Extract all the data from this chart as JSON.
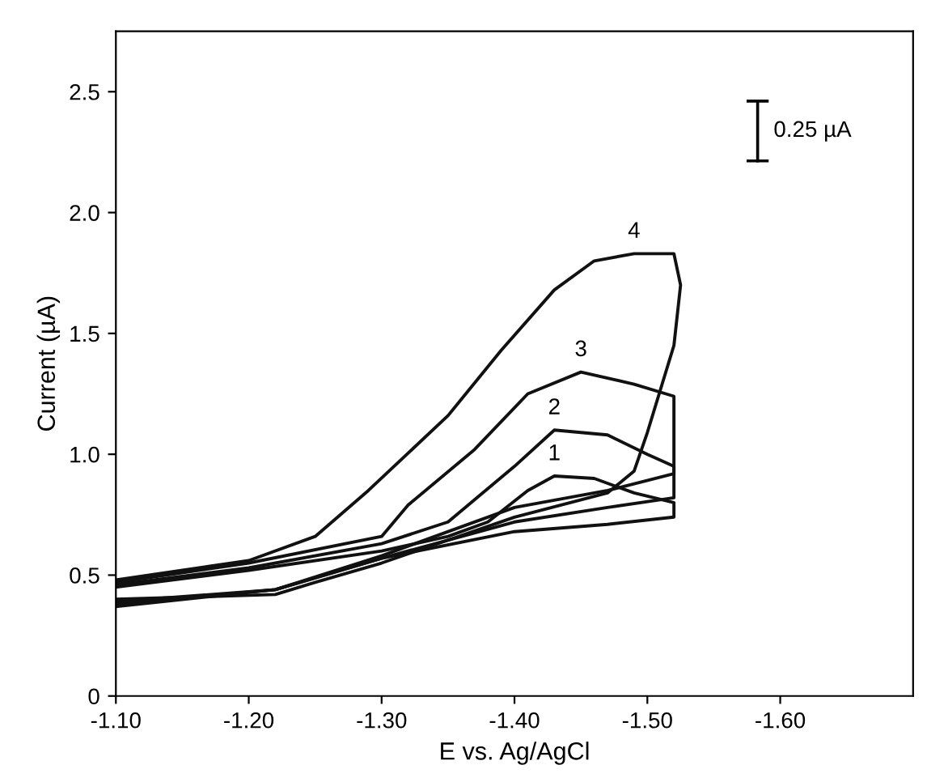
{
  "chart_data": {
    "type": "line",
    "xlabel": "E vs. Ag/AgCl",
    "ylabel": "Current (µA)",
    "xlim": [
      -1.1,
      -1.7
    ],
    "ylim": [
      0,
      2.75
    ],
    "xticks": [
      {
        "value": -1.1,
        "label": "-1.10"
      },
      {
        "value": -1.2,
        "label": "-1.20"
      },
      {
        "value": -1.3,
        "label": "-1.30"
      },
      {
        "value": -1.4,
        "label": "-1.40"
      },
      {
        "value": -1.5,
        "label": "-1.50"
      },
      {
        "value": -1.6,
        "label": "-1.60"
      }
    ],
    "yticks": [
      0,
      {
        "value": 0.5,
        "label": "0.5"
      },
      {
        "value": 1.0,
        "label": "1.0"
      },
      {
        "value": 1.5,
        "label": "1.5"
      },
      {
        "value": 2.0,
        "label": "2.0"
      },
      {
        "value": 2.5,
        "label": "2.5"
      }
    ],
    "grid": false,
    "legend": false,
    "marker": "none",
    "line_style": "solid",
    "series": [
      {
        "name": "1",
        "color": "#111111",
        "x": [
          -1.1,
          -1.2,
          -1.3,
          -1.35,
          -1.38,
          -1.41,
          -1.43,
          -1.46,
          -1.49,
          -1.52,
          -1.52,
          -1.47,
          -1.4,
          -1.3,
          -1.22,
          -1.1
        ],
        "values": [
          0.45,
          0.52,
          0.6,
          0.66,
          0.72,
          0.85,
          0.91,
          0.9,
          0.84,
          0.8,
          0.74,
          0.71,
          0.68,
          0.57,
          0.44,
          0.37
        ]
      },
      {
        "name": "2",
        "color": "#111111",
        "x": [
          -1.1,
          -1.2,
          -1.3,
          -1.35,
          -1.4,
          -1.43,
          -1.47,
          -1.5,
          -1.52,
          -1.52,
          -1.47,
          -1.4,
          -1.3,
          -1.22,
          -1.1
        ],
        "values": [
          0.46,
          0.53,
          0.63,
          0.72,
          0.95,
          1.1,
          1.08,
          1.0,
          0.95,
          0.82,
          0.78,
          0.72,
          0.57,
          0.44,
          0.38
        ]
      },
      {
        "name": "3",
        "color": "#111111",
        "x": [
          -1.1,
          -1.2,
          -1.3,
          -1.32,
          -1.37,
          -1.41,
          -1.45,
          -1.49,
          -1.52,
          -1.52,
          -1.47,
          -1.4,
          -1.3,
          -1.22,
          -1.1
        ],
        "values": [
          0.47,
          0.55,
          0.66,
          0.79,
          1.02,
          1.25,
          1.34,
          1.29,
          1.24,
          0.92,
          0.85,
          0.78,
          0.58,
          0.44,
          0.39
        ]
      },
      {
        "name": "4",
        "color": "#111111",
        "x": [
          -1.1,
          -1.2,
          -1.25,
          -1.29,
          -1.35,
          -1.39,
          -1.43,
          -1.46,
          -1.49,
          -1.52,
          -1.525,
          -1.52,
          -1.51,
          -1.5,
          -1.49,
          -1.47,
          -1.4,
          -1.3,
          -1.25,
          -1.22,
          -1.1
        ],
        "values": [
          0.48,
          0.56,
          0.66,
          0.85,
          1.16,
          1.43,
          1.68,
          1.8,
          1.83,
          1.83,
          1.7,
          1.45,
          1.27,
          1.09,
          0.93,
          0.84,
          0.74,
          0.55,
          0.47,
          0.42,
          0.4
        ]
      }
    ],
    "annotations": [
      "0.25 µA"
    ]
  }
}
